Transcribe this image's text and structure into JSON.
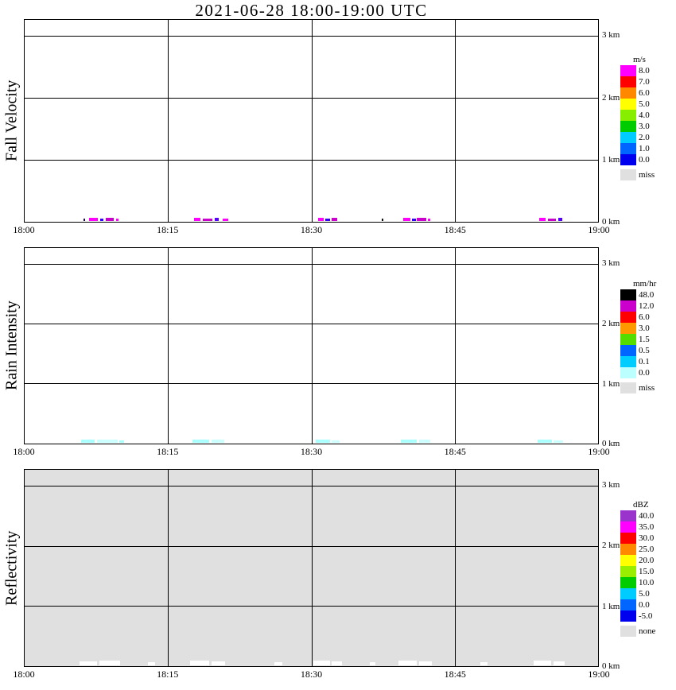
{
  "title": "2021-06-28  18:00-19:00 UTC",
  "chart_data": {
    "type": "heatmap",
    "x_ticks": [
      "18:00",
      "18:15",
      "18:30",
      "18:45",
      "19:00"
    ],
    "y_ticks": [
      "3 km",
      "2 km",
      "1 km",
      "0 km"
    ],
    "x_range": [
      "18:00",
      "19:00"
    ],
    "y_range_km": [
      0,
      3.2
    ],
    "grid": "on",
    "panels": [
      {
        "ylabel": "Fall Velocity",
        "units": "m/s",
        "bg": "#ffffff",
        "colorbar": [
          {
            "label": "8.0",
            "color": "#ff00ff"
          },
          {
            "label": "7.0",
            "color": "#ff0000"
          },
          {
            "label": "6.0",
            "color": "#ff8800"
          },
          {
            "label": "5.0",
            "color": "#ffff00"
          },
          {
            "label": "4.0",
            "color": "#88ee00"
          },
          {
            "label": "3.0",
            "color": "#00cc00"
          },
          {
            "label": "2.0",
            "color": "#00ccff"
          },
          {
            "label": "1.0",
            "color": "#0066ff"
          },
          {
            "label": "0.0",
            "color": "#0000ee"
          }
        ],
        "missing": {
          "label": "miss",
          "color": "#e0e0e0"
        },
        "data_note": "sparse shallow echoes below 0.1 km only",
        "echo_times": [
          "18:06-18:11",
          "18:18-18:21",
          "18:31-18:33",
          "18:40-18:43",
          "18:54-18:56"
        ],
        "specks": [
          {
            "x": 10.3,
            "w": 0.3,
            "h": 3,
            "c": "#220066"
          },
          {
            "x": 11.2,
            "w": 1.6,
            "h": 4,
            "c": "#ff00ff"
          },
          {
            "x": 13.2,
            "w": 0.5,
            "h": 3,
            "c": "#3300ff"
          },
          {
            "x": 14.2,
            "w": 1.4,
            "h": 4,
            "c": "#cc00cc"
          },
          {
            "x": 16.0,
            "w": 0.4,
            "h": 3,
            "c": "#ff00ff"
          },
          {
            "x": 29.6,
            "w": 1.0,
            "h": 4,
            "c": "#ff00ff"
          },
          {
            "x": 31.0,
            "w": 1.8,
            "h": 3,
            "c": "#cc00cc"
          },
          {
            "x": 33.2,
            "w": 0.7,
            "h": 4,
            "c": "#5500ff"
          },
          {
            "x": 34.6,
            "w": 0.9,
            "h": 3,
            "c": "#ff00ff"
          },
          {
            "x": 51.2,
            "w": 0.9,
            "h": 4,
            "c": "#ff00ff"
          },
          {
            "x": 52.4,
            "w": 0.8,
            "h": 3,
            "c": "#3300ff"
          },
          {
            "x": 53.5,
            "w": 1.0,
            "h": 4,
            "c": "#cc00cc"
          },
          {
            "x": 62.3,
            "w": 0.3,
            "h": 3,
            "c": "#111111"
          },
          {
            "x": 66.0,
            "w": 1.3,
            "h": 4,
            "c": "#ff00ff"
          },
          {
            "x": 67.6,
            "w": 0.6,
            "h": 3,
            "c": "#3300ff"
          },
          {
            "x": 68.4,
            "w": 1.6,
            "h": 4,
            "c": "#cc00cc"
          },
          {
            "x": 70.3,
            "w": 0.5,
            "h": 3,
            "c": "#ff00ff"
          },
          {
            "x": 89.8,
            "w": 1.1,
            "h": 4,
            "c": "#ff00ff"
          },
          {
            "x": 91.2,
            "w": 1.5,
            "h": 3,
            "c": "#cc00cc"
          },
          {
            "x": 93.0,
            "w": 0.8,
            "h": 4,
            "c": "#5500ff"
          }
        ]
      },
      {
        "ylabel": "Rain Intensity",
        "units": "mm/hr",
        "bg": "#ffffff",
        "colorbar": [
          {
            "label": "48.0",
            "color": "#000000"
          },
          {
            "label": "12.0",
            "color": "#cc00cc"
          },
          {
            "label": "6.0",
            "color": "#ff0000"
          },
          {
            "label": "3.0",
            "color": "#ff9900"
          },
          {
            "label": "1.5",
            "color": "#55dd00"
          },
          {
            "label": "0.5",
            "color": "#0066ff"
          },
          {
            "label": "0.1",
            "color": "#00ccff"
          },
          {
            "label": "0.0",
            "color": "#bbffff"
          }
        ],
        "missing": {
          "label": "miss",
          "color": "#e0e0e0"
        },
        "data_note": "very light rain (0.0-0.1 mm/hr) below 0.1 km only",
        "echo_times": [
          "18:06-18:11",
          "18:18-18:21",
          "18:31-18:33",
          "18:40-18:43",
          "18:54-18:56"
        ],
        "specks": [
          {
            "x": 9.8,
            "w": 2.4,
            "h": 4,
            "c": "#aaffff"
          },
          {
            "x": 12.6,
            "w": 3.6,
            "h": 4,
            "c": "#ccffff"
          },
          {
            "x": 16.5,
            "w": 0.8,
            "h": 3,
            "c": "#aaffff"
          },
          {
            "x": 29.2,
            "w": 3.0,
            "h": 4,
            "c": "#aaffff"
          },
          {
            "x": 32.6,
            "w": 2.2,
            "h": 4,
            "c": "#ccffff"
          },
          {
            "x": 50.8,
            "w": 2.4,
            "h": 4,
            "c": "#aaffff"
          },
          {
            "x": 53.5,
            "w": 1.4,
            "h": 3,
            "c": "#ccffff"
          },
          {
            "x": 65.6,
            "w": 2.8,
            "h": 4,
            "c": "#aaffff"
          },
          {
            "x": 68.8,
            "w": 2.0,
            "h": 4,
            "c": "#ccffff"
          },
          {
            "x": 89.4,
            "w": 2.6,
            "h": 4,
            "c": "#aaffff"
          },
          {
            "x": 92.3,
            "w": 1.6,
            "h": 3,
            "c": "#ccffff"
          }
        ]
      },
      {
        "ylabel": "Reflectivity",
        "units": "dBZ",
        "bg": "#e0e0e0",
        "colorbar": [
          {
            "label": "40.0",
            "color": "#9933cc"
          },
          {
            "label": "35.0",
            "color": "#ff00ff"
          },
          {
            "label": "30.0",
            "color": "#ff0000"
          },
          {
            "label": "25.0",
            "color": "#ff8800"
          },
          {
            "label": "20.0",
            "color": "#ffff00"
          },
          {
            "label": "15.0",
            "color": "#99ee00"
          },
          {
            "label": "10.0",
            "color": "#00cc00"
          },
          {
            "label": "5.0",
            "color": "#00ccff"
          },
          {
            "label": "0.0",
            "color": "#0066ff"
          },
          {
            "label": "-5.0",
            "color": "#0000ee"
          }
        ],
        "missing": {
          "label": "none",
          "color": "#e0e0e0"
        },
        "data_note": "field entirely 'none' (gray) except white gaps below 0.1 km",
        "echo_times": [
          "18:06-18:11",
          "18:17-18:21",
          "18:30-18:33",
          "18:39-18:43",
          "18:53-18:57"
        ],
        "specks": [
          {
            "x": 9.6,
            "w": 3.0,
            "h": 5,
            "c": "#ffffff"
          },
          {
            "x": 13.0,
            "w": 3.6,
            "h": 6,
            "c": "#ffffff"
          },
          {
            "x": 21.5,
            "w": 1.2,
            "h": 4,
            "c": "#ffffff"
          },
          {
            "x": 28.8,
            "w": 3.4,
            "h": 6,
            "c": "#ffffff"
          },
          {
            "x": 32.6,
            "w": 2.4,
            "h": 5,
            "c": "#ffffff"
          },
          {
            "x": 43.5,
            "w": 1.4,
            "h": 4,
            "c": "#ffffff"
          },
          {
            "x": 50.4,
            "w": 2.8,
            "h": 6,
            "c": "#ffffff"
          },
          {
            "x": 53.6,
            "w": 1.8,
            "h": 5,
            "c": "#ffffff"
          },
          {
            "x": 60.2,
            "w": 1.0,
            "h": 4,
            "c": "#ffffff"
          },
          {
            "x": 65.2,
            "w": 3.2,
            "h": 6,
            "c": "#ffffff"
          },
          {
            "x": 68.8,
            "w": 2.2,
            "h": 5,
            "c": "#ffffff"
          },
          {
            "x": 79.5,
            "w": 1.2,
            "h": 4,
            "c": "#ffffff"
          },
          {
            "x": 88.8,
            "w": 3.0,
            "h": 6,
            "c": "#ffffff"
          },
          {
            "x": 92.2,
            "w": 2.0,
            "h": 5,
            "c": "#ffffff"
          }
        ]
      }
    ]
  }
}
